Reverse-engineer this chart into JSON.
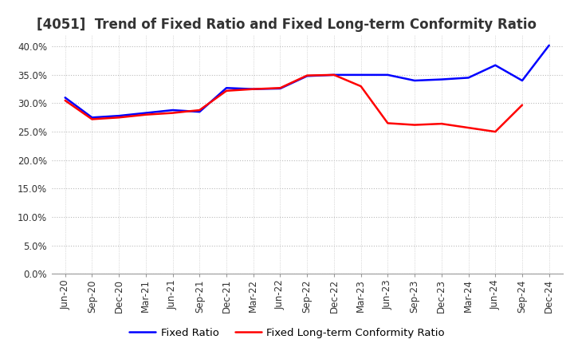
{
  "title": "[4051]  Trend of Fixed Ratio and Fixed Long-term Conformity Ratio",
  "x_labels": [
    "Jun-20",
    "Sep-20",
    "Dec-20",
    "Mar-21",
    "Jun-21",
    "Sep-21",
    "Dec-21",
    "Mar-22",
    "Jun-22",
    "Sep-22",
    "Dec-22",
    "Mar-23",
    "Jun-23",
    "Sep-23",
    "Dec-23",
    "Mar-24",
    "Jun-24",
    "Sep-24",
    "Dec-24"
  ],
  "fixed_ratio": [
    0.31,
    0.275,
    0.278,
    0.283,
    0.288,
    0.285,
    0.327,
    0.325,
    0.326,
    0.348,
    0.35,
    0.35,
    0.35,
    0.34,
    0.342,
    0.345,
    0.367,
    0.34,
    0.402
  ],
  "fixed_lt_ratio": [
    0.305,
    0.272,
    0.275,
    0.28,
    0.283,
    0.288,
    0.322,
    0.325,
    0.327,
    0.349,
    0.35,
    0.33,
    0.265,
    0.262,
    0.264,
    0.257,
    0.25,
    0.297,
    null
  ],
  "fixed_ratio_color": "#0000FF",
  "fixed_lt_ratio_color": "#FF0000",
  "ylim": [
    0.0,
    0.42
  ],
  "yticks": [
    0.0,
    0.05,
    0.1,
    0.15,
    0.2,
    0.25,
    0.3,
    0.35,
    0.4
  ],
  "grid_color": "#bbbbbb",
  "background_color": "#ffffff",
  "legend_fixed_ratio": "Fixed Ratio",
  "legend_fixed_lt_ratio": "Fixed Long-term Conformity Ratio",
  "title_fontsize": 12,
  "axis_fontsize": 8.5,
  "legend_fontsize": 9.5,
  "line_width": 1.8
}
